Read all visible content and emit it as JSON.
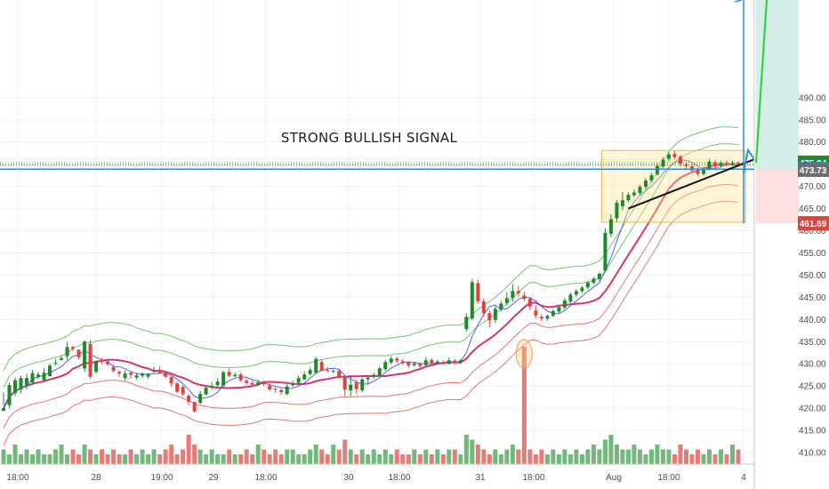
{
  "chart_data": {
    "type": "candlestick",
    "annotation": "STRONG BULLISH SIGNAL",
    "y_axis": {
      "ticks": [
        "490.00",
        "485.00",
        "480.00",
        "475.00",
        "470.00",
        "465.00",
        "460.00",
        "455.00",
        "450.00",
        "445.00",
        "440.00",
        "435.00",
        "430.00",
        "425.00",
        "420.00",
        "415.00",
        "410.00"
      ],
      "range": [
        407.5,
        492.5
      ]
    },
    "x_axis": {
      "ticks": [
        "18:00",
        "28",
        "19:00",
        "29",
        "18:00",
        "30",
        "18:00",
        "31",
        "18:00",
        "Aug",
        "18:00",
        "4"
      ]
    },
    "price_labels": [
      {
        "value": "475.34",
        "color": "#1e8a2c"
      },
      {
        "value": "473.88",
        "color": "#2f8fd8"
      },
      {
        "value": "473.73",
        "color": "#6e6e6e"
      },
      {
        "value": "461.69",
        "color": "#e0433b"
      }
    ],
    "levels": {
      "last_price": 475.34,
      "entry": 473.88,
      "ma": 473.73,
      "stop": 461.69
    },
    "colors": {
      "up": "#1e8a2c",
      "down": "#e0433b",
      "basis": "#d6336c",
      "upper_band": "#5cb85c",
      "lower_band": "#e05a5a",
      "fast_ma": "#5a5fd8",
      "entry_line": "#2f8fd8"
    },
    "candles": [
      [
        419.4,
        420.0,
        423.6,
        420.7
      ],
      [
        420.7,
        425.2,
        425.8,
        420.0
      ],
      [
        423.4,
        426.3,
        426.9,
        422.7
      ],
      [
        424.2,
        426.8,
        427.3,
        423.3
      ],
      [
        425.1,
        426.8,
        427.8,
        424.3
      ],
      [
        425.8,
        427.9,
        428.6,
        425.2
      ],
      [
        427.1,
        427.6,
        428.2,
        426.5
      ],
      [
        426.3,
        428.0,
        429.0,
        426.3
      ],
      [
        427.2,
        429.6,
        430.1,
        427.2
      ],
      [
        430.2,
        430.2,
        431.1,
        429.7
      ],
      [
        430.9,
        431.3,
        431.9,
        430.7
      ],
      [
        431.7,
        433.8,
        434.9,
        430.9
      ],
      [
        433.8,
        433.4,
        434.1,
        432.8
      ],
      [
        433.2,
        431.5,
        432.6,
        431.0
      ],
      [
        429.0,
        435.0,
        435.3,
        428.2
      ],
      [
        434.5,
        427.1,
        435.4,
        426.7
      ],
      [
        428.2,
        430.4,
        430.8,
        427.8
      ],
      [
        430.8,
        430.5,
        431.3,
        430.0
      ],
      [
        430.5,
        429.9,
        430.2,
        429.5
      ],
      [
        429.2,
        428.4,
        429.8,
        428.0
      ],
      [
        428.2,
        427.8,
        428.5,
        427.1
      ],
      [
        426.8,
        427.8,
        428.5,
        426.2
      ],
      [
        428.0,
        427.5,
        428.2,
        426.7
      ],
      [
        426.9,
        427.4,
        428.0,
        426.4
      ],
      [
        427.3,
        427.8,
        428.1,
        426.8
      ],
      [
        427.1,
        427.8,
        427.7,
        426.7
      ],
      [
        428.2,
        428.5,
        429.3,
        428.0
      ],
      [
        428.5,
        428.0,
        429.5,
        427.7
      ],
      [
        428.0,
        427.1,
        428.4,
        426.8
      ],
      [
        427.0,
        425.6,
        427.2,
        424.9
      ],
      [
        425.6,
        423.7,
        426.0,
        423.4
      ],
      [
        424.8,
        423.2,
        425.2,
        422.8
      ],
      [
        422.8,
        421.4,
        423.2,
        420.7
      ],
      [
        421.4,
        419.3,
        421.5,
        419.0
      ],
      [
        421.2,
        423.2,
        423.9,
        420.9
      ],
      [
        423.1,
        424.6,
        425.0,
        422.9
      ],
      [
        424.7,
        425.0,
        425.8,
        424.2
      ],
      [
        425.2,
        426.0,
        426.7,
        424.7
      ],
      [
        425.1,
        428.1,
        428.5,
        424.7
      ],
      [
        428.2,
        427.3,
        428.9,
        426.9
      ],
      [
        427.2,
        427.5,
        428.0,
        427.0
      ],
      [
        427.6,
        426.3,
        428.0,
        425.9
      ],
      [
        426.2,
        425.7,
        426.6,
        425.2
      ],
      [
        425.7,
        425.3,
        426.2,
        424.8
      ],
      [
        425.3,
        425.8,
        426.3,
        424.9
      ],
      [
        425.9,
        425.4,
        426.3,
        425.0
      ],
      [
        425.1,
        424.2,
        425.6,
        423.8
      ],
      [
        424.4,
        424.2,
        424.8,
        423.5
      ],
      [
        424.1,
        423.6,
        424.4,
        423.1
      ],
      [
        423.2,
        424.9,
        425.4,
        422.9
      ],
      [
        425.2,
        425.6,
        426.2,
        424.8
      ],
      [
        425.7,
        426.8,
        427.4,
        425.4
      ],
      [
        426.5,
        427.6,
        428.3,
        426.3
      ],
      [
        427.7,
        428.6,
        429.2,
        427.4
      ],
      [
        428.0,
        431.1,
        431.6,
        427.7
      ],
      [
        430.4,
        428.5,
        431.0,
        428.2
      ],
      [
        428.6,
        428.5,
        429.3,
        428.0
      ],
      [
        428.4,
        428.4,
        428.8,
        427.9
      ],
      [
        428.4,
        427.1,
        429.0,
        426.6
      ],
      [
        427.0,
        424.2,
        427.4,
        422.7
      ],
      [
        424.0,
        425.3,
        427.2,
        422.8
      ],
      [
        425.8,
        424.3,
        426.4,
        423.2
      ],
      [
        424.0,
        426.5,
        426.9,
        423.6
      ],
      [
        426.5,
        426.9,
        427.2,
        425.3
      ],
      [
        427.0,
        427.5,
        428.0,
        426.6
      ],
      [
        427.4,
        429.0,
        429.4,
        427.1
      ],
      [
        428.8,
        430.4,
        430.9,
        428.4
      ],
      [
        430.3,
        431.2,
        431.8,
        429.9
      ],
      [
        431.2,
        430.7,
        431.6,
        430.2
      ],
      [
        430.6,
        430.2,
        431.0,
        429.8
      ],
      [
        430.3,
        429.6,
        430.6,
        429.1
      ],
      [
        429.7,
        430.1,
        430.5,
        429.3
      ],
      [
        430.0,
        429.5,
        430.4,
        429.1
      ],
      [
        429.7,
        430.8,
        431.5,
        429.4
      ],
      [
        430.9,
        430.2,
        431.3,
        429.8
      ],
      [
        430.2,
        430.5,
        430.9,
        430.0
      ],
      [
        430.4,
        430.1,
        430.8,
        429.7
      ],
      [
        430.0,
        430.8,
        431.4,
        429.8
      ],
      [
        430.7,
        430.3,
        431.1,
        429.9
      ],
      [
        430.3,
        430.8,
        431.2,
        430.0
      ],
      [
        437.8,
        440.6,
        441.4,
        437.3
      ],
      [
        440.2,
        448.4,
        449.1,
        439.8
      ],
      [
        448.2,
        444.1,
        448.9,
        443.5
      ],
      [
        444.1,
        441.4,
        444.8,
        440.6
      ],
      [
        441.4,
        439.8,
        442.1,
        438.3
      ],
      [
        439.9,
        442.4,
        443.0,
        439.2
      ],
      [
        442.3,
        443.6,
        444.2,
        441.8
      ],
      [
        443.7,
        444.8,
        446.2,
        443.1
      ],
      [
        444.9,
        446.4,
        448.0,
        444.0
      ],
      [
        446.4,
        445.9,
        447.6,
        445.1
      ],
      [
        445.4,
        444.6,
        446.2,
        444.1
      ],
      [
        444.7,
        442.9,
        445.1,
        442.1
      ],
      [
        442.0,
        440.9,
        443.2,
        440.3
      ],
      [
        440.6,
        440.2,
        441.2,
        439.7
      ],
      [
        440.2,
        440.8,
        441.1,
        439.7
      ],
      [
        440.8,
        441.9,
        442.3,
        440.5
      ],
      [
        441.8,
        442.8,
        443.3,
        441.4
      ],
      [
        442.7,
        444.3,
        444.8,
        442.3
      ],
      [
        444.0,
        445.6,
        446.1,
        443.6
      ],
      [
        445.6,
        446.4,
        446.9,
        445.1
      ],
      [
        446.4,
        447.2,
        447.6,
        446.0
      ],
      [
        447.2,
        448.3,
        448.7,
        446.8
      ],
      [
        448.3,
        449.2,
        449.6,
        447.9
      ],
      [
        449.1,
        450.3,
        450.6,
        448.7
      ],
      [
        451.0,
        459.5,
        460.6,
        450.6
      ],
      [
        459.3,
        462.6,
        463.7,
        458.5
      ],
      [
        462.8,
        466.3,
        466.9,
        462.0
      ],
      [
        465.5,
        466.9,
        468.7,
        464.6
      ],
      [
        466.9,
        468.1,
        468.7,
        466.4
      ],
      [
        468.0,
        468.6,
        469.3,
        467.6
      ],
      [
        468.5,
        469.9,
        470.4,
        468.0
      ],
      [
        469.9,
        471.3,
        471.9,
        469.4
      ],
      [
        471.3,
        472.5,
        473.1,
        470.9
      ],
      [
        472.7,
        474.6,
        475.2,
        472.3
      ],
      [
        474.5,
        476.0,
        476.6,
        474.1
      ],
      [
        476.2,
        477.2,
        477.8,
        475.6
      ],
      [
        477.3,
        476.6,
        478.0,
        476.1
      ],
      [
        476.7,
        475.1,
        477.1,
        474.5
      ],
      [
        475.0,
        474.6,
        475.6,
        474.0
      ],
      [
        474.5,
        473.6,
        475.1,
        473.2
      ],
      [
        473.6,
        472.8,
        474.2,
        472.3
      ],
      [
        472.8,
        473.9,
        474.4,
        472.4
      ],
      [
        473.9,
        475.6,
        476.1,
        473.6
      ],
      [
        475.4,
        474.6,
        476.0,
        474.1
      ],
      [
        474.6,
        475.3,
        475.8,
        474.2
      ],
      [
        475.2,
        474.9,
        475.8,
        474.6
      ],
      [
        474.9,
        475.2,
        475.8,
        474.6
      ],
      [
        475.3,
        475.2,
        475.6,
        474.8
      ]
    ],
    "volume_max": 24,
    "volume": [
      3,
      2,
      4,
      2,
      3,
      2,
      3,
      2,
      2,
      3,
      4,
      2,
      3,
      2,
      4,
      3,
      2,
      3,
      2,
      3,
      2,
      2,
      3,
      2,
      3,
      2,
      3,
      2,
      3,
      4,
      2,
      3,
      6,
      4,
      3,
      2,
      3,
      2,
      2,
      3,
      2,
      2,
      3,
      2,
      4,
      3,
      2,
      3,
      2,
      3,
      3,
      2,
      2,
      3,
      4,
      3,
      2,
      4,
      3,
      5,
      3,
      2,
      3,
      2,
      3,
      2,
      3,
      2,
      3,
      2,
      2,
      3,
      2,
      3,
      2,
      3,
      2,
      3,
      3,
      2,
      6,
      5,
      4,
      3,
      2,
      3,
      2,
      3,
      4,
      3,
      24,
      3,
      2,
      3,
      2,
      3,
      2,
      3,
      2,
      3,
      2,
      3,
      4,
      3,
      5,
      6,
      4,
      3,
      3,
      4,
      3,
      2,
      3,
      4,
      3,
      3,
      2,
      4,
      3,
      2,
      3,
      2,
      3,
      2,
      3,
      2,
      4,
      3
    ]
  }
}
